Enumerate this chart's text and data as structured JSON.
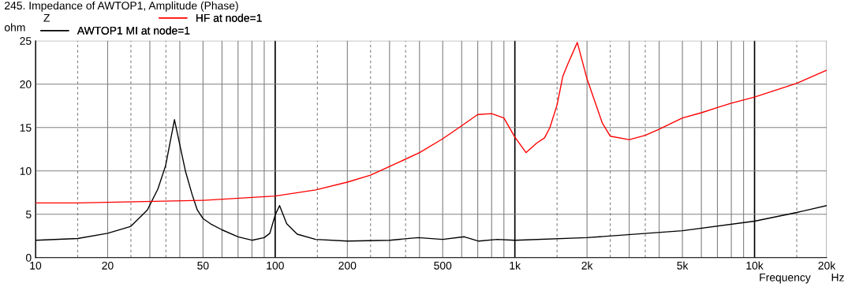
{
  "chart_data": {
    "type": "line",
    "title": "245. Impedance of AWTOP1, Amplitude (Phase)",
    "xlabel": "Frequency",
    "ylabel": "ohm",
    "annotations": [
      "Z",
      "Hz"
    ],
    "log": "x",
    "grid": true,
    "legend": "top left",
    "marker": "none",
    "line_style": "solid",
    "xlim": [
      10,
      20000
    ],
    "ylim": [
      0,
      25
    ],
    "xticks": [
      10,
      {
        "value": 15,
        "label": null
      },
      20,
      {
        "value": 25,
        "label": null
      },
      {
        "value": 30,
        "label": null
      },
      {
        "value": 35,
        "label": null
      },
      {
        "value": 40,
        "label": null
      },
      50,
      {
        "value": 60,
        "label": null
      },
      {
        "value": 70,
        "label": null
      },
      {
        "value": 80,
        "label": null
      },
      {
        "value": 90,
        "label": null
      },
      100,
      {
        "value": 150,
        "label": null
      },
      200,
      {
        "value": 250,
        "label": null
      },
      {
        "value": 300,
        "label": null
      },
      {
        "value": 350,
        "label": null
      },
      {
        "value": 400,
        "label": null
      },
      500,
      {
        "value": 600,
        "label": null
      },
      {
        "value": 700,
        "label": null
      },
      {
        "value": 800,
        "label": null
      },
      {
        "value": 900,
        "label": null
      },
      {
        "value": 1000,
        "label": "1k"
      },
      {
        "value": 1500,
        "label": null
      },
      {
        "value": 2000,
        "label": "2k"
      },
      {
        "value": 2500,
        "label": null
      },
      {
        "value": 3000,
        "label": null
      },
      {
        "value": 3500,
        "label": null
      },
      {
        "value": 4000,
        "label": null
      },
      {
        "value": 5000,
        "label": "5k"
      },
      {
        "value": 6000,
        "label": null
      },
      {
        "value": 7000,
        "label": null
      },
      {
        "value": 8000,
        "label": null
      },
      {
        "value": 9000,
        "label": null
      },
      {
        "value": 10000,
        "label": "10k"
      },
      {
        "value": 15000,
        "label": null
      },
      {
        "value": 20000,
        "label": "20k"
      }
    ],
    "yticks": [
      0,
      5,
      10,
      15,
      20,
      25
    ],
    "series": [
      {
        "name": "AWTOP1 MI at node=1",
        "color": "#000000",
        "x": [
          10,
          15,
          20,
          25,
          29.3,
          32.4,
          34.9,
          38,
          42.2,
          45,
          47.3,
          50,
          53.7,
          60,
          70,
          80,
          90,
          95,
          100,
          104.3,
          111.7,
          123.6,
          147.5,
          200,
          300,
          395,
          500,
          615,
          707,
          844,
          1000,
          2000,
          5000,
          10000,
          15000,
          20000
        ],
        "values": [
          2.0,
          2.2,
          2.8,
          3.6,
          5.5,
          7.9,
          10.6,
          15.9,
          10.0,
          7.3,
          5.5,
          4.5,
          3.9,
          3.2,
          2.4,
          2.0,
          2.3,
          2.8,
          4.9,
          6.0,
          3.9,
          2.7,
          2.1,
          1.9,
          2.0,
          2.3,
          2.1,
          2.4,
          1.9,
          2.1,
          2.0,
          2.3,
          3.1,
          4.2,
          5.2,
          6.0
        ]
      },
      {
        "name": "HF at node=1",
        "color": "#ff0000",
        "x": [
          10,
          15,
          50,
          100,
          147.5,
          200,
          250,
          300,
          400,
          500,
          600,
          700,
          800,
          900,
          1000,
          1114,
          1233,
          1330,
          1400,
          1500,
          1585,
          1668,
          1822,
          2000,
          2318,
          2500,
          3000,
          3500,
          4000,
          5000,
          6000,
          7000,
          8000,
          10000,
          15000,
          20000
        ],
        "values": [
          6.3,
          6.3,
          6.6,
          7.1,
          7.8,
          8.7,
          9.5,
          10.5,
          12.1,
          13.7,
          15.2,
          16.5,
          16.6,
          16.1,
          13.9,
          12.1,
          13.2,
          13.8,
          15.0,
          17.6,
          20.9,
          22.4,
          24.8,
          20.6,
          15.5,
          14.0,
          13.6,
          14.1,
          14.8,
          16.1,
          16.7,
          17.3,
          17.8,
          18.5,
          20.1,
          21.6
        ]
      }
    ]
  }
}
